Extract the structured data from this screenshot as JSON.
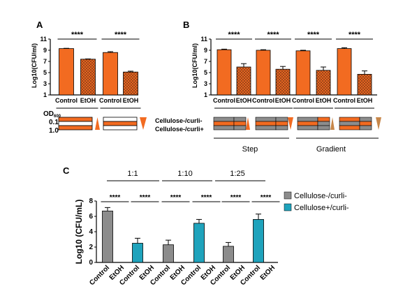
{
  "colors": {
    "orange": "#F26B21",
    "grey": "#8C8C8C",
    "teal": "#1FA3BC",
    "black": "#000000"
  },
  "panel_a": {
    "label": "A",
    "od_label": "OD",
    "od_subscript": "600",
    "od_values": [
      "0.1",
      "1.0"
    ],
    "pattern_note": "EtOH bars drawn with crosshatch texture",
    "stripes": [
      [
        "white",
        "orange"
      ],
      [
        "orange",
        "white"
      ]
    ]
  },
  "panel_b": {
    "label": "B",
    "row_labels": [
      "Cellulose-/curli-",
      "Cellulose-/curli+"
    ],
    "group_labels": [
      "Step",
      "Gradient"
    ]
  },
  "panel_c": {
    "label": "C",
    "dilution_labels": [
      "1:1",
      "1:10",
      "1:25"
    ],
    "legend": [
      "Cellulose-/curli-",
      "Cellulose+/curli-"
    ]
  },
  "chart_data": [
    {
      "type": "bar",
      "panel": "A",
      "categories": [
        "Control",
        "EtOH",
        "Control",
        "EtOH"
      ],
      "values": [
        9.3,
        7.4,
        8.6,
        5.1
      ],
      "errors": [
        0.05,
        0.05,
        0.15,
        0.15
      ],
      "pattern": [
        "solid",
        "hatch",
        "solid",
        "hatch"
      ],
      "ylabel": "Log10(CFU/ml)",
      "ylim": [
        1,
        11
      ],
      "yticks": [
        1,
        3,
        5,
        7,
        9,
        11
      ],
      "significance": [
        "****",
        "****"
      ]
    },
    {
      "type": "bar",
      "panel": "B",
      "categories": [
        "Control",
        "EtOH",
        "Control",
        "EtOH",
        "Control",
        "EtOH",
        "Control",
        "EtOH"
      ],
      "values": [
        9.1,
        6.0,
        9.0,
        5.6,
        8.9,
        5.4,
        9.3,
        4.7
      ],
      "errors": [
        0.1,
        0.6,
        0.1,
        0.5,
        0.1,
        0.6,
        0.15,
        0.6
      ],
      "pattern": [
        "solid",
        "hatch",
        "solid",
        "hatch",
        "solid",
        "hatch",
        "solid",
        "hatch"
      ],
      "ylabel": "Log10(CFU/ml)",
      "ylim": [
        1,
        11
      ],
      "yticks": [
        1,
        3,
        5,
        7,
        9,
        11
      ],
      "significance": [
        "****",
        "****",
        "****",
        "****"
      ]
    },
    {
      "type": "bar",
      "panel": "C",
      "categories": [
        "Control",
        "EtOH",
        "Control",
        "EtOH",
        "Control",
        "EtOH",
        "Control",
        "EtOH",
        "Control",
        "EtOH",
        "Control",
        "EtOH"
      ],
      "values": [
        6.7,
        0,
        2.5,
        0,
        2.3,
        0,
        5.1,
        0,
        2.1,
        0,
        5.6,
        0
      ],
      "errors": [
        0.45,
        0,
        0.65,
        0,
        0.6,
        0,
        0.5,
        0,
        0.5,
        0,
        0.7,
        0
      ],
      "series_of_bar": [
        0,
        0,
        1,
        1,
        0,
        0,
        1,
        1,
        0,
        0,
        1,
        1
      ],
      "series": [
        {
          "name": "Cellulose-/curli-"
        },
        {
          "name": "Cellulose+/curli-"
        }
      ],
      "ylabel": "Log10 (CFU/mL)",
      "ylim": [
        0,
        8
      ],
      "yticks": [
        0,
        2,
        4,
        6,
        8
      ],
      "significance": [
        "****",
        "****",
        "****",
        "****",
        "****",
        "****"
      ]
    }
  ]
}
